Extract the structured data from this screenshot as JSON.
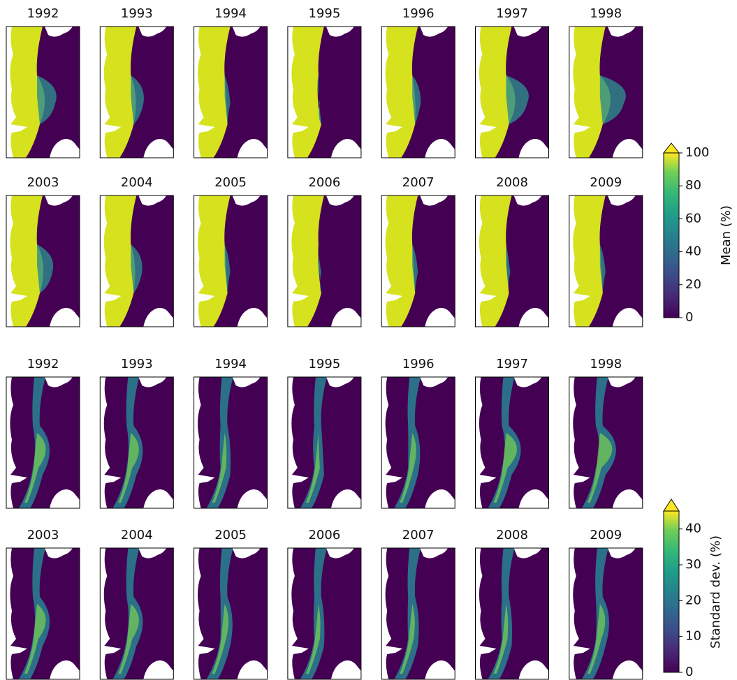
{
  "mean": {
    "years": [
      [
        "1992",
        "1993",
        "1994",
        "1995",
        "1996",
        "1997",
        "1998"
      ],
      [
        "2003",
        "2004",
        "2005",
        "2006",
        "2007",
        "2008",
        "2009"
      ]
    ],
    "colorbar": {
      "label": "Mean (%)",
      "lim": [
        0,
        100
      ],
      "ticks": [
        0,
        20,
        40,
        60,
        80,
        100
      ]
    }
  },
  "std": {
    "years": [
      [
        "1992",
        "1993",
        "1994",
        "1995",
        "1996",
        "1997",
        "1998"
      ],
      [
        "2003",
        "2004",
        "2005",
        "2006",
        "2007",
        "2008",
        "2009"
      ]
    ],
    "colorbar": {
      "label": "Standard dev. (%)",
      "lim": [
        0,
        45
      ],
      "ticks": [
        0,
        10,
        20,
        30,
        40
      ]
    }
  }
}
